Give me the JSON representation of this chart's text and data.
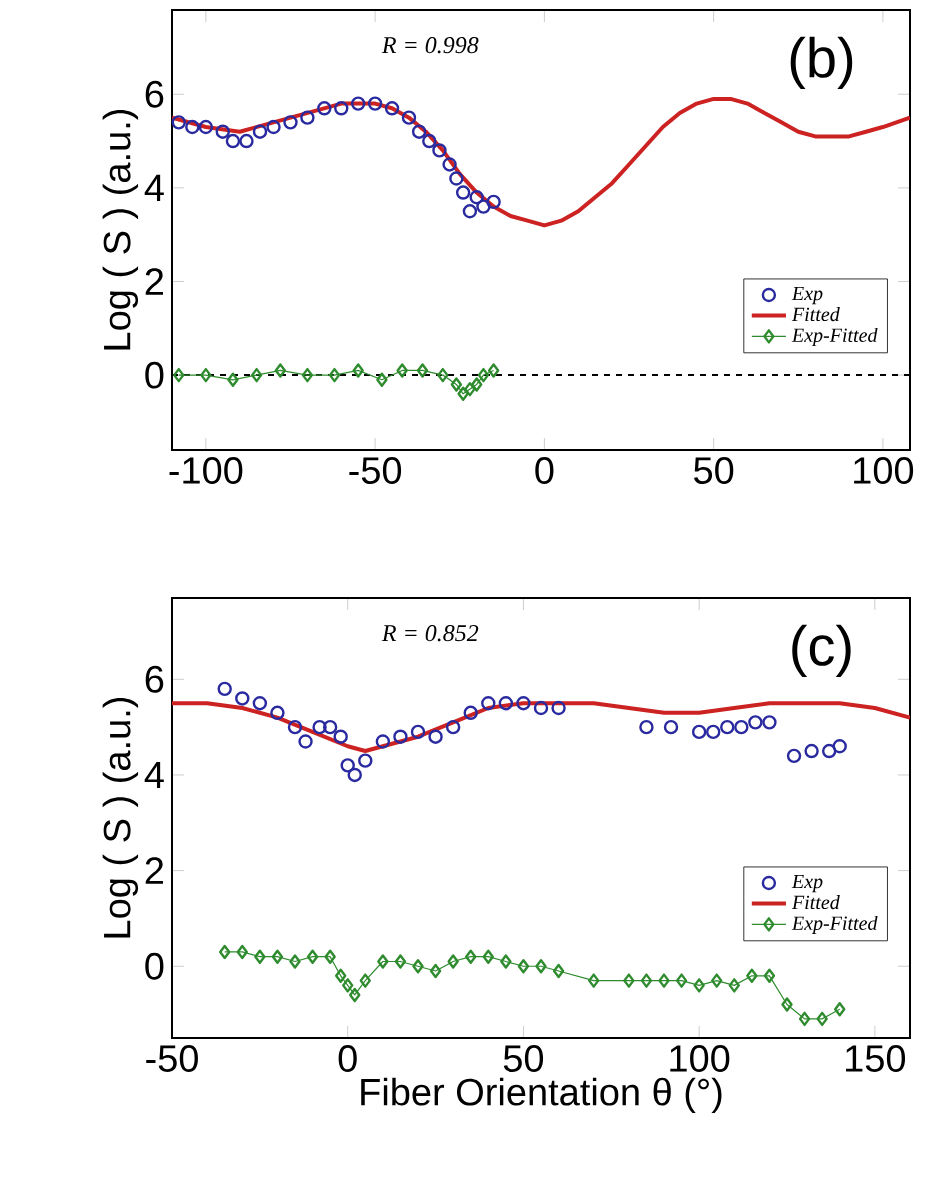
{
  "chart_data": [
    {
      "type": "line",
      "ylabel": "Log ( S ) (a.u.)",
      "annotations": [
        "R = 0.998",
        "(b)"
      ],
      "xlim": [
        -110,
        108
      ],
      "ylim": [
        -1.6,
        7.8
      ],
      "xticks": [
        -100,
        -50,
        0,
        50,
        100
      ],
      "yticks": [
        0,
        2,
        4,
        6
      ],
      "legend": "bottom right",
      "grid": false,
      "ref_lines": [
        {
          "axis": "y",
          "value": 0,
          "line_style": "dashed",
          "color": "#000000"
        }
      ],
      "series": [
        {
          "name": "Exp",
          "type": "scatter",
          "marker": "circle",
          "color": "#2a2aa0",
          "x": [
            -108,
            -104,
            -100,
            -95,
            -92,
            -88,
            -84,
            -80,
            -75,
            -70,
            -65,
            -60,
            -55,
            -50,
            -45,
            -40,
            -37,
            -34,
            -31,
            -28,
            -26,
            -24,
            -22,
            -20,
            -18,
            -15
          ],
          "values": [
            5.4,
            5.3,
            5.3,
            5.2,
            5.0,
            5.0,
            5.2,
            5.3,
            5.4,
            5.5,
            5.7,
            5.7,
            5.8,
            5.8,
            5.7,
            5.5,
            5.2,
            5.0,
            4.8,
            4.5,
            4.2,
            3.9,
            3.5,
            3.8,
            3.6,
            3.7
          ]
        },
        {
          "name": "Fitted",
          "marker": "none",
          "color": "#cc2222",
          "x": [
            -110,
            -100,
            -90,
            -80,
            -70,
            -60,
            -50,
            -45,
            -40,
            -35,
            -30,
            -25,
            -20,
            -15,
            -10,
            -5,
            0,
            5,
            10,
            15,
            20,
            25,
            30,
            35,
            40,
            45,
            50,
            55,
            60,
            65,
            70,
            75,
            80,
            85,
            90,
            95,
            100,
            108
          ],
          "values": [
            5.5,
            5.3,
            5.2,
            5.4,
            5.6,
            5.8,
            5.8,
            5.7,
            5.5,
            5.2,
            4.8,
            4.3,
            3.9,
            3.6,
            3.4,
            3.3,
            3.2,
            3.3,
            3.5,
            3.8,
            4.1,
            4.5,
            4.9,
            5.3,
            5.6,
            5.8,
            5.9,
            5.9,
            5.8,
            5.6,
            5.4,
            5.2,
            5.1,
            5.1,
            5.1,
            5.2,
            5.3,
            5.5
          ]
        },
        {
          "name": "Exp-Fitted",
          "marker": "diamond",
          "color": "#2e8b2e",
          "x": [
            -108,
            -100,
            -92,
            -85,
            -78,
            -70,
            -62,
            -55,
            -48,
            -42,
            -36,
            -30,
            -26,
            -24,
            -22,
            -20,
            -18,
            -15
          ],
          "values": [
            0.0,
            0.0,
            -0.1,
            0.0,
            0.1,
            0.0,
            0.0,
            0.1,
            -0.1,
            0.1,
            0.1,
            0.0,
            -0.2,
            -0.4,
            -0.3,
            -0.2,
            0.0,
            0.1
          ]
        }
      ]
    },
    {
      "type": "line",
      "xlabel": "Fiber Orientation θ (°)",
      "ylabel": "Log ( S ) (a.u.)",
      "annotations": [
        "R = 0.852",
        "(c)"
      ],
      "xlim": [
        -50,
        160
      ],
      "ylim": [
        -1.5,
        7.7
      ],
      "xticks": [
        -50,
        0,
        50,
        100,
        150
      ],
      "yticks": [
        0,
        2,
        4,
        6
      ],
      "legend": "bottom right",
      "grid": false,
      "series": [
        {
          "name": "Exp",
          "type": "scatter",
          "marker": "circle",
          "color": "#2a2aa0",
          "x": [
            -35,
            -30,
            -25,
            -20,
            -15,
            -12,
            -8,
            -5,
            -2,
            0,
            2,
            5,
            10,
            15,
            20,
            25,
            30,
            35,
            40,
            45,
            50,
            55,
            60,
            85,
            92,
            100,
            104,
            108,
            112,
            116,
            120,
            127,
            132,
            137,
            140
          ],
          "values": [
            5.8,
            5.6,
            5.5,
            5.3,
            5.0,
            4.7,
            5.0,
            5.0,
            4.8,
            4.2,
            4.0,
            4.3,
            4.7,
            4.8,
            4.9,
            4.8,
            5.0,
            5.3,
            5.5,
            5.5,
            5.5,
            5.4,
            5.4,
            5.0,
            5.0,
            4.9,
            4.9,
            5.0,
            5.0,
            5.1,
            5.1,
            4.4,
            4.5,
            4.5,
            4.6
          ]
        },
        {
          "name": "Fitted",
          "marker": "none",
          "color": "#cc2222",
          "x": [
            -50,
            -40,
            -30,
            -20,
            -10,
            0,
            5,
            10,
            20,
            30,
            40,
            50,
            60,
            70,
            80,
            90,
            100,
            110,
            120,
            130,
            140,
            150,
            160
          ],
          "values": [
            5.5,
            5.5,
            5.4,
            5.2,
            4.9,
            4.6,
            4.5,
            4.6,
            4.8,
            5.1,
            5.4,
            5.5,
            5.5,
            5.5,
            5.4,
            5.3,
            5.3,
            5.4,
            5.5,
            5.5,
            5.5,
            5.4,
            5.2
          ]
        },
        {
          "name": "Exp-Fitted",
          "marker": "diamond",
          "color": "#2e8b2e",
          "x": [
            -35,
            -30,
            -25,
            -20,
            -15,
            -10,
            -5,
            -2,
            0,
            2,
            5,
            10,
            15,
            20,
            25,
            30,
            35,
            40,
            45,
            50,
            55,
            60,
            70,
            80,
            85,
            90,
            95,
            100,
            105,
            110,
            115,
            120,
            125,
            130,
            135,
            140
          ],
          "values": [
            0.3,
            0.3,
            0.2,
            0.2,
            0.1,
            0.2,
            0.2,
            -0.2,
            -0.4,
            -0.6,
            -0.3,
            0.1,
            0.1,
            0.0,
            -0.1,
            0.1,
            0.2,
            0.2,
            0.1,
            0.0,
            0.0,
            -0.1,
            -0.3,
            -0.3,
            -0.3,
            -0.3,
            -0.3,
            -0.4,
            -0.3,
            -0.4,
            -0.2,
            -0.2,
            -0.8,
            -1.1,
            -1.1,
            -0.9
          ]
        }
      ]
    }
  ]
}
